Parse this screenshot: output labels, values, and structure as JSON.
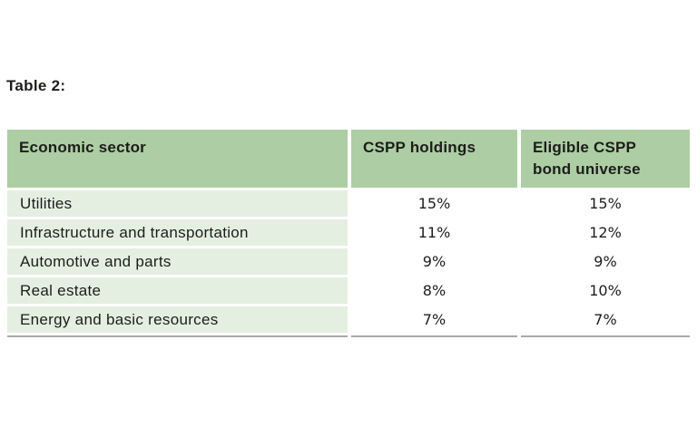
{
  "title": "Table 2:",
  "table": {
    "columns": {
      "sector": "Economic sector",
      "holdings": "CSPP holdings",
      "universe": "Eligible CSPP bond universe"
    },
    "rows": [
      {
        "sector": "Utilities",
        "cspp_holdings": "15%",
        "eligible_cspp_bond_universe": "15%"
      },
      {
        "sector": "Infrastructure and transportation",
        "cspp_holdings": "11%",
        "eligible_cspp_bond_universe": "12%"
      },
      {
        "sector": "Automotive and parts",
        "cspp_holdings": "9%",
        "eligible_cspp_bond_universe": "9%"
      },
      {
        "sector": "Real estate",
        "cspp_holdings": "8%",
        "eligible_cspp_bond_universe": "10%"
      },
      {
        "sector": "Energy and basic resources",
        "cspp_holdings": "7%",
        "eligible_cspp_bond_universe": "7%"
      }
    ]
  },
  "colors": {
    "header_background": "#adcda4",
    "row_background": "#e4efe1",
    "bottom_rule": "#a9a9a9",
    "text": "#1d1d1b",
    "page_background": "#ffffff"
  }
}
